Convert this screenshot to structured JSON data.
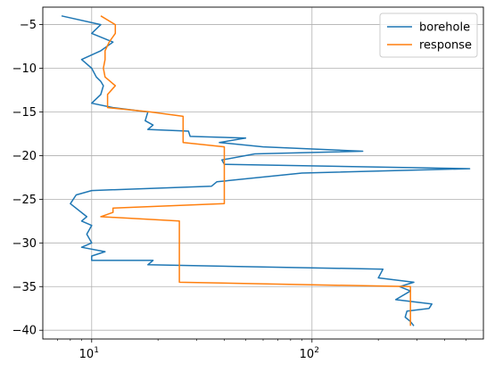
{
  "chart_data": {
    "type": "line",
    "title": "",
    "xlabel": "",
    "ylabel": "",
    "xscale": "log",
    "xlim": [
      6,
      600
    ],
    "ylim": [
      -41,
      -3
    ],
    "x_ticks": [
      {
        "value": 10,
        "label": "10",
        "sup": "1"
      },
      {
        "value": 100,
        "label": "10",
        "sup": "2"
      }
    ],
    "y_ticks": [
      -5,
      -10,
      -15,
      -20,
      -25,
      -30,
      -35,
      -40
    ],
    "y_tick_labels": [
      "−5",
      "−10",
      "−15",
      "−20",
      "−25",
      "−30",
      "−35",
      "−40"
    ],
    "grid": true,
    "legend_position": "upper-right",
    "series": [
      {
        "name": "borehole",
        "color": "#1f77b4",
        "points": [
          [
            7.3,
            -4
          ],
          [
            11.0,
            -5
          ],
          [
            10.0,
            -6
          ],
          [
            12.5,
            -7
          ],
          [
            11.0,
            -8
          ],
          [
            9.0,
            -9
          ],
          [
            10.0,
            -10
          ],
          [
            10.5,
            -11
          ],
          [
            11.0,
            -11.5
          ],
          [
            11.3,
            -12
          ],
          [
            11.0,
            -13
          ],
          [
            10.0,
            -14
          ],
          [
            12.5,
            -14.5
          ],
          [
            18.0,
            -15
          ],
          [
            17.5,
            -16
          ],
          [
            19.0,
            -16.5
          ],
          [
            18.0,
            -17
          ],
          [
            27.5,
            -17.2
          ],
          [
            28.0,
            -17.8
          ],
          [
            50.0,
            -18
          ],
          [
            38.0,
            -18.5
          ],
          [
            60.0,
            -19
          ],
          [
            170.0,
            -19.5
          ],
          [
            55.0,
            -19.8
          ],
          [
            39.0,
            -20.5
          ],
          [
            40.0,
            -21
          ],
          [
            520.0,
            -21.5
          ],
          [
            90.0,
            -22
          ],
          [
            37.0,
            -23
          ],
          [
            35.0,
            -23.5
          ],
          [
            10.0,
            -24
          ],
          [
            8.5,
            -24.5
          ],
          [
            8.0,
            -25.5
          ],
          [
            9.5,
            -27
          ],
          [
            9.0,
            -27.5
          ],
          [
            10.0,
            -28
          ],
          [
            9.5,
            -29
          ],
          [
            10.0,
            -30
          ],
          [
            9.0,
            -30.5
          ],
          [
            11.5,
            -31
          ],
          [
            10.0,
            -31.5
          ],
          [
            10.0,
            -32
          ],
          [
            19.0,
            -32
          ],
          [
            18.0,
            -32.5
          ],
          [
            210.0,
            -33
          ],
          [
            200.0,
            -34
          ],
          [
            290.0,
            -34.5
          ],
          [
            250.0,
            -35
          ],
          [
            280.0,
            -35.5
          ],
          [
            240.0,
            -36.5
          ],
          [
            350.0,
            -37
          ],
          [
            340.0,
            -37.5
          ],
          [
            270.0,
            -37.8
          ],
          [
            265.0,
            -38.5
          ],
          [
            280.0,
            -39
          ],
          [
            290.0,
            -39.5
          ]
        ]
      },
      {
        "name": "response",
        "color": "#ff7f0e",
        "points": [
          [
            11.0,
            -4
          ],
          [
            12.8,
            -5
          ],
          [
            12.8,
            -6
          ],
          [
            12.0,
            -7
          ],
          [
            11.5,
            -8
          ],
          [
            11.5,
            -9
          ],
          [
            11.3,
            -10
          ],
          [
            11.5,
            -11
          ],
          [
            12.8,
            -12
          ],
          [
            11.8,
            -13
          ],
          [
            11.8,
            -14.5
          ],
          [
            18.5,
            -15
          ],
          [
            26.0,
            -15.5
          ],
          [
            26.0,
            -18.5
          ],
          [
            40.0,
            -19
          ],
          [
            40.0,
            -25.5
          ],
          [
            12.5,
            -26
          ],
          [
            12.5,
            -26.5
          ],
          [
            11.0,
            -27
          ],
          [
            25.0,
            -27.5
          ],
          [
            25.0,
            -34.5
          ],
          [
            280.0,
            -35
          ],
          [
            280.0,
            -39.5
          ]
        ]
      }
    ]
  }
}
